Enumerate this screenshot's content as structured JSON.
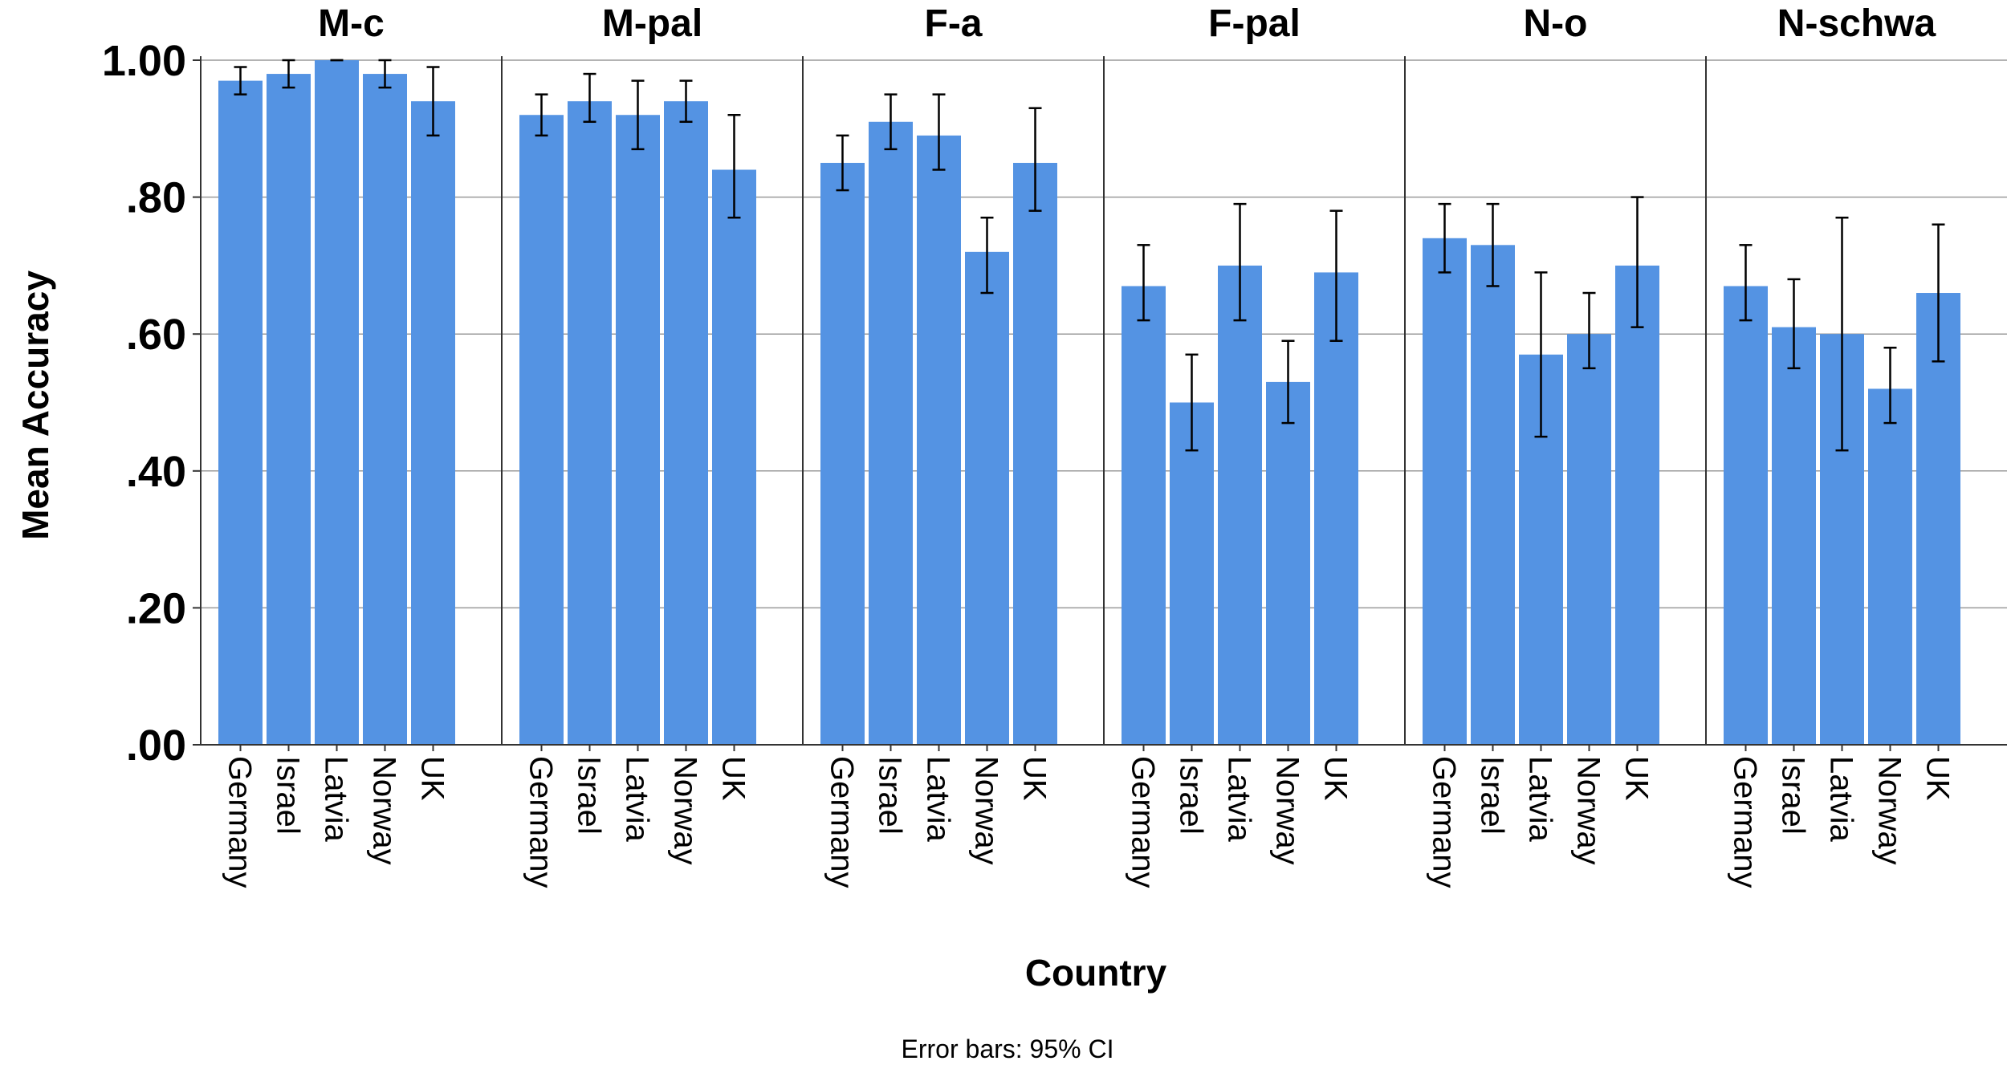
{
  "chart_data": {
    "type": "bar",
    "ylabel": "Mean Accuracy",
    "xlabel": "Country",
    "footnote": "Error bars: 95% CI",
    "ylim": [
      0,
      1.05
    ],
    "yticks": [
      {
        "value": 0.0,
        "label": ".00"
      },
      {
        "value": 0.2,
        "label": ".20"
      },
      {
        "value": 0.4,
        "label": ".40"
      },
      {
        "value": 0.6,
        "label": ".60"
      },
      {
        "value": 0.8,
        "label": ".80"
      },
      {
        "value": 1.0,
        "label": "1.00"
      }
    ],
    "categories": [
      "Germany",
      "Israel",
      "Latvia",
      "Norway",
      "UK"
    ],
    "bar_color": "#5493E3",
    "panels": [
      {
        "title": "M-c",
        "values": [
          0.97,
          0.98,
          1.0,
          0.98,
          0.94
        ],
        "ci_low": [
          0.95,
          0.96,
          1.0,
          0.96,
          0.89
        ],
        "ci_high": [
          0.99,
          1.0,
          1.0,
          1.0,
          0.99
        ]
      },
      {
        "title": "M-pal",
        "values": [
          0.92,
          0.94,
          0.92,
          0.94,
          0.84
        ],
        "ci_low": [
          0.89,
          0.91,
          0.87,
          0.91,
          0.77
        ],
        "ci_high": [
          0.95,
          0.98,
          0.97,
          0.97,
          0.92
        ]
      },
      {
        "title": "F-a",
        "values": [
          0.85,
          0.91,
          0.89,
          0.72,
          0.85
        ],
        "ci_low": [
          0.81,
          0.87,
          0.84,
          0.66,
          0.78
        ],
        "ci_high": [
          0.89,
          0.95,
          0.95,
          0.77,
          0.93
        ]
      },
      {
        "title": "F-pal",
        "values": [
          0.67,
          0.5,
          0.7,
          0.53,
          0.69
        ],
        "ci_low": [
          0.62,
          0.43,
          0.62,
          0.47,
          0.59
        ],
        "ci_high": [
          0.73,
          0.57,
          0.79,
          0.59,
          0.78
        ]
      },
      {
        "title": "N-o",
        "values": [
          0.74,
          0.73,
          0.57,
          0.6,
          0.7
        ],
        "ci_low": [
          0.69,
          0.67,
          0.45,
          0.55,
          0.61
        ],
        "ci_high": [
          0.79,
          0.79,
          0.69,
          0.66,
          0.8
        ]
      },
      {
        "title": "N-schwa",
        "values": [
          0.67,
          0.61,
          0.6,
          0.52,
          0.66
        ],
        "ci_low": [
          0.62,
          0.55,
          0.43,
          0.47,
          0.56
        ],
        "ci_high": [
          0.73,
          0.68,
          0.77,
          0.58,
          0.76
        ]
      }
    ]
  }
}
